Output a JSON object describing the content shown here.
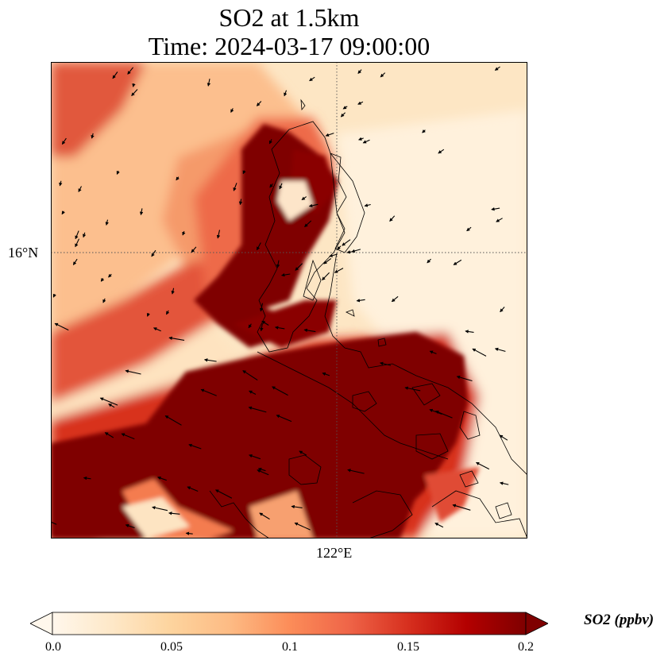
{
  "title": {
    "line1": "SO2 at 1.5km",
    "line2": "Time: 2024-03-17 09:00:00"
  },
  "map": {
    "lat_tick_label": "16°N",
    "lon_tick_label": "122°E",
    "gridline_style": "dotted",
    "colormap": "OrRd",
    "high_color": "#7f0000",
    "low_color": "#fff7ec"
  },
  "colorbar": {
    "title": "SO2 (ppbv)",
    "ticks": [
      "0.0",
      "0.05",
      "0.1",
      "0.15",
      "0.2"
    ],
    "min": 0.0,
    "max": 0.2,
    "extend": "both",
    "stops": [
      "#fff7ec",
      "#fee8c8",
      "#fdd49e",
      "#fdbb84",
      "#fc8d59",
      "#ef6548",
      "#d7301f",
      "#b30000",
      "#7f0000"
    ]
  }
}
